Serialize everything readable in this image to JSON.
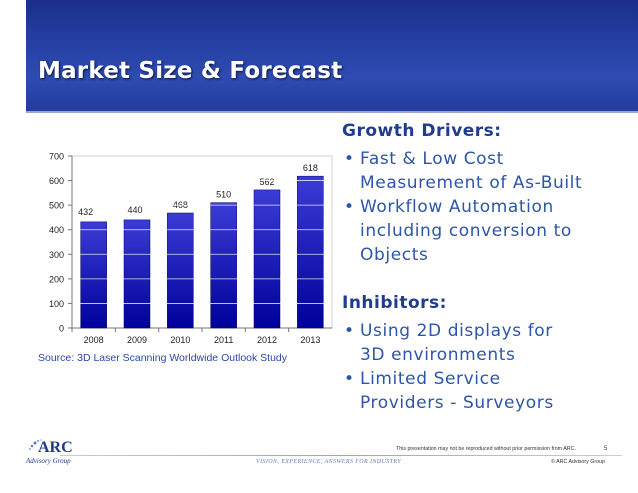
{
  "slide": {
    "title": "Market Size & Forecast",
    "source": "Source:  3D Laser Scanning Worldwide Outlook Study",
    "growth_heading": "Growth Drivers:",
    "growth_items": [
      [
        "Fast & Low Cost",
        "Measurement of As-Built"
      ],
      [
        "Workflow Automation",
        "including conversion to",
        "Objects"
      ]
    ],
    "inhibitors_heading": "Inhibitors:",
    "inhibitor_items": [
      [
        "Using 2D displays for",
        "3D environments"
      ],
      [
        "Limited Service",
        "Providers - Surveyors"
      ]
    ],
    "bullet_char": "•"
  },
  "footer": {
    "logo_text": "ARC",
    "logo_sub": "Advisory Group",
    "tagline": "VISION, EXPERIENCE, ANSWERS FOR INDUSTRY",
    "notice": "This presentation may not be reproduced without prior permission from ARC.",
    "page_number": "5",
    "copyright": "© ARC Advisory Group"
  },
  "colors": {
    "banner": "#2742a6",
    "bar_top": "#3b3bd6",
    "bar_bottom": "#00009a",
    "text_blue": "#2d55a8",
    "heading_blue": "#1f3c8f"
  },
  "chart_data": {
    "type": "bar",
    "categories": [
      "2008",
      "2009",
      "2010",
      "2011",
      "2012",
      "2013"
    ],
    "values": [
      432,
      440,
      468,
      510,
      562,
      618
    ],
    "data_labels": [
      "432",
      "440",
      "468",
      "510",
      "562",
      "618"
    ],
    "yticks": [
      "0",
      "100",
      "200",
      "300",
      "400",
      "500",
      "600",
      "700"
    ],
    "ylim": [
      0,
      700
    ],
    "grid": true,
    "title": "",
    "xlabel": "",
    "ylabel": ""
  }
}
